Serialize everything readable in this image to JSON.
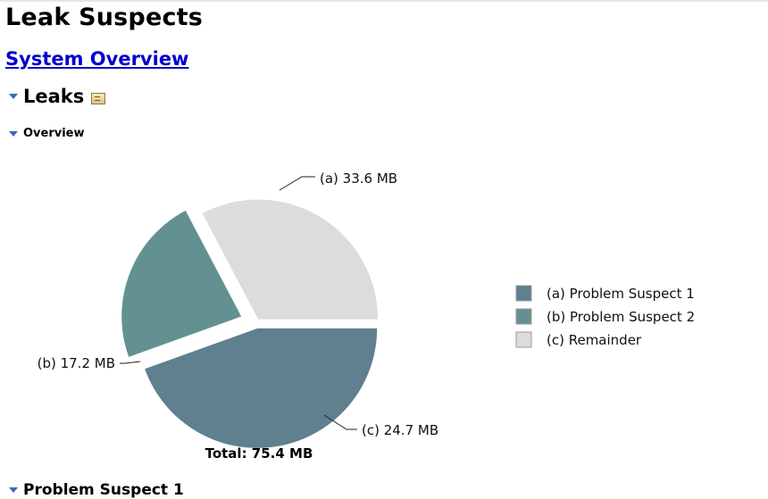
{
  "page": {
    "title": "Leak Suspects",
    "overview_link": "System Overview",
    "section_leaks": "Leaks",
    "section_overview": "Overview",
    "section_next": "Problem Suspect 1"
  },
  "colors": {
    "slice_a": "#607f8f",
    "slice_b": "#639191",
    "slice_c": "#dcdcdc",
    "link": "#0000cc",
    "twisty": "#2f6fb5"
  },
  "icons": {
    "twisty": "triangle-down-icon",
    "details": "details-icon"
  },
  "chart_data": {
    "type": "pie",
    "unit": "MB",
    "total_label": "Total: 75.4 MB",
    "total": 75.4,
    "slices": [
      {
        "key": "(a)",
        "name": "Problem Suspect 1",
        "value": 33.6,
        "label": "33.6 MB",
        "color": "#607f8f"
      },
      {
        "key": "(b)",
        "name": "Problem Suspect 2",
        "value": 17.2,
        "label": "17.2 MB",
        "color": "#639191"
      },
      {
        "key": "(c)",
        "name": "Remainder",
        "value": 24.7,
        "label": "24.7 MB",
        "color": "#dcdcdc"
      }
    ],
    "legend_position": "right"
  }
}
